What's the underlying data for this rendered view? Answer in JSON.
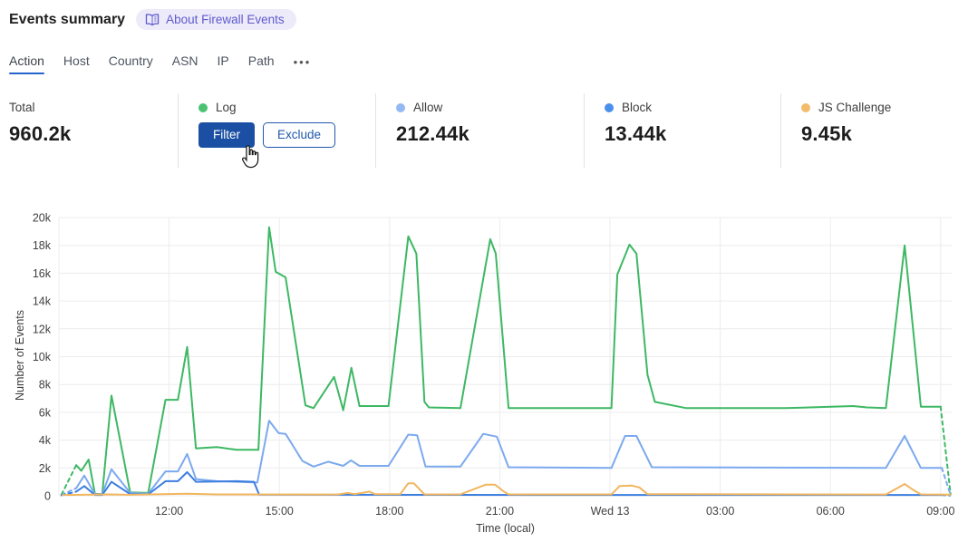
{
  "header": {
    "title": "Events summary",
    "about_badge": "About Firewall Events"
  },
  "tabs": {
    "items": [
      {
        "label": "Action",
        "active": true
      },
      {
        "label": "Host",
        "active": false
      },
      {
        "label": "Country",
        "active": false
      },
      {
        "label": "ASN",
        "active": false
      },
      {
        "label": "IP",
        "active": false
      },
      {
        "label": "Path",
        "active": false
      }
    ],
    "more": "•••"
  },
  "stats": {
    "cards": [
      {
        "label": "Total",
        "value": "960.2k"
      },
      {
        "label": "Log",
        "dot_color": "#4bc272",
        "buttons": [
          {
            "label": "Filter"
          },
          {
            "label": "Exclude"
          }
        ]
      },
      {
        "label": "Allow",
        "dot_color": "#93b8f4",
        "value": "212.44k"
      },
      {
        "label": "Block",
        "dot_color": "#4a90ea",
        "value": "13.44k"
      },
      {
        "label": "JS Challenge",
        "dot_color": "#f3bc6c",
        "value": "9.45k"
      }
    ]
  },
  "icons": {
    "badge": "open-book-icon",
    "tabs_more": "ellipsis-icon",
    "cursor": "hand-pointer-cursor"
  },
  "chart_data": {
    "type": "line",
    "title": "",
    "xlabel": "Time (local)",
    "ylabel": "Number of Events",
    "x_unit": "hours since 09:00 local; tick 15.0 = Wed 13 midnight",
    "y_unit": "events",
    "xlim": [
      0,
      24.3
    ],
    "ylim": [
      0,
      20000
    ],
    "grid": true,
    "grid_color": "#ececec",
    "tick_color": "#404040",
    "legend_position": "top-cards",
    "yticks": [
      {
        "v": 0,
        "label": "0"
      },
      {
        "v": 2000,
        "label": "2k"
      },
      {
        "v": 4000,
        "label": "4k"
      },
      {
        "v": 6000,
        "label": "6k"
      },
      {
        "v": 8000,
        "label": "8k"
      },
      {
        "v": 10000,
        "label": "10k"
      },
      {
        "v": 12000,
        "label": "12k"
      },
      {
        "v": 14000,
        "label": "14k"
      },
      {
        "v": 16000,
        "label": "16k"
      },
      {
        "v": 18000,
        "label": "18k"
      },
      {
        "v": 20000,
        "label": "20k"
      }
    ],
    "xticks": [
      {
        "t": 3,
        "label": "12:00"
      },
      {
        "t": 6,
        "label": "15:00"
      },
      {
        "t": 9,
        "label": "18:00"
      },
      {
        "t": 12,
        "label": "21:00"
      },
      {
        "t": 15,
        "label": "Wed 13"
      },
      {
        "t": 18,
        "label": "03:00"
      },
      {
        "t": 21,
        "label": "06:00"
      },
      {
        "t": 24,
        "label": "09:00"
      }
    ],
    "series": [
      {
        "name": "Log",
        "color": "#3db863",
        "total": "960.2k share (Log)",
        "dashed_prefix": [
          [
            0.07,
            80
          ],
          [
            0.47,
            2200
          ]
        ],
        "points": [
          [
            0.47,
            2200
          ],
          [
            0.61,
            1800
          ],
          [
            0.81,
            2600
          ],
          [
            0.98,
            150
          ],
          [
            1.18,
            120
          ],
          [
            1.43,
            7200
          ],
          [
            1.94,
            250
          ],
          [
            2.43,
            200
          ],
          [
            2.9,
            6900
          ],
          [
            3.24,
            6900
          ],
          [
            3.49,
            10700
          ],
          [
            3.73,
            3400
          ],
          [
            4.3,
            3500
          ],
          [
            4.84,
            3300
          ],
          [
            5.43,
            3300
          ],
          [
            5.72,
            19300
          ],
          [
            5.9,
            16100
          ],
          [
            6.17,
            15700
          ],
          [
            6.71,
            6500
          ],
          [
            6.93,
            6300
          ],
          [
            7.49,
            8550
          ],
          [
            7.74,
            6150
          ],
          [
            7.96,
            9200
          ],
          [
            8.18,
            6450
          ],
          [
            8.97,
            6450
          ],
          [
            9.51,
            18650
          ],
          [
            9.73,
            17400
          ],
          [
            9.95,
            6750
          ],
          [
            10.07,
            6350
          ],
          [
            10.93,
            6300
          ],
          [
            11.74,
            18450
          ],
          [
            11.89,
            17400
          ],
          [
            12.24,
            6300
          ],
          [
            15.04,
            6300
          ],
          [
            15.2,
            15900
          ],
          [
            15.53,
            18050
          ],
          [
            15.72,
            17400
          ],
          [
            16.02,
            8700
          ],
          [
            16.22,
            6750
          ],
          [
            17.08,
            6300
          ],
          [
            19.78,
            6300
          ],
          [
            21.62,
            6450
          ],
          [
            21.99,
            6350
          ],
          [
            22.51,
            6300
          ],
          [
            23.02,
            18000
          ],
          [
            23.46,
            6400
          ],
          [
            24.0,
            6400
          ]
        ],
        "dashed_suffix": [
          [
            24.0,
            6400
          ],
          [
            24.27,
            100
          ]
        ]
      },
      {
        "name": "Allow",
        "color": "#7ca9ef",
        "total": "212.44k",
        "dashed_prefix": [
          [
            0.07,
            60
          ],
          [
            0.47,
            550
          ]
        ],
        "points": [
          [
            0.47,
            550
          ],
          [
            0.69,
            1450
          ],
          [
            0.98,
            120
          ],
          [
            1.18,
            120
          ],
          [
            1.43,
            1900
          ],
          [
            1.94,
            200
          ],
          [
            2.43,
            150
          ],
          [
            2.9,
            1750
          ],
          [
            3.24,
            1750
          ],
          [
            3.49,
            3000
          ],
          [
            3.73,
            1200
          ],
          [
            4.3,
            1050
          ],
          [
            4.84,
            1000
          ],
          [
            5.4,
            950
          ],
          [
            5.72,
            5400
          ],
          [
            5.98,
            4500
          ],
          [
            6.17,
            4450
          ],
          [
            6.63,
            2500
          ],
          [
            6.93,
            2100
          ],
          [
            7.33,
            2450
          ],
          [
            7.74,
            2150
          ],
          [
            7.95,
            2550
          ],
          [
            8.18,
            2150
          ],
          [
            8.97,
            2150
          ],
          [
            9.51,
            4400
          ],
          [
            9.75,
            4350
          ],
          [
            9.98,
            2100
          ],
          [
            10.93,
            2100
          ],
          [
            11.55,
            4450
          ],
          [
            11.92,
            4250
          ],
          [
            12.24,
            2050
          ],
          [
            15.04,
            2000
          ],
          [
            15.41,
            4300
          ],
          [
            15.72,
            4300
          ],
          [
            16.14,
            2050
          ],
          [
            22.51,
            2000
          ],
          [
            23.02,
            4300
          ],
          [
            23.46,
            2000
          ],
          [
            24.03,
            2000
          ]
        ],
        "dashed_suffix": [
          [
            24.03,
            2000
          ],
          [
            24.27,
            50
          ]
        ]
      },
      {
        "name": "Block",
        "color": "#3c7ee0",
        "total": "13.44k",
        "dashed_prefix": [
          [
            0.07,
            40
          ],
          [
            0.47,
            300
          ]
        ],
        "points": [
          [
            0.47,
            300
          ],
          [
            0.69,
            700
          ],
          [
            0.98,
            60
          ],
          [
            1.18,
            60
          ],
          [
            1.43,
            1000
          ],
          [
            1.94,
            120
          ],
          [
            2.43,
            100
          ],
          [
            2.9,
            1050
          ],
          [
            3.24,
            1050
          ],
          [
            3.49,
            1700
          ],
          [
            3.73,
            1000
          ],
          [
            4.84,
            1050
          ],
          [
            5.31,
            1000
          ],
          [
            5.45,
            80
          ],
          [
            13.0,
            60
          ],
          [
            24.03,
            60
          ]
        ],
        "dashed_suffix": [
          [
            24.03,
            60
          ],
          [
            24.25,
            20
          ]
        ]
      },
      {
        "name": "JS Challenge",
        "color": "#f1b65f",
        "total": "9.45k",
        "points": [
          [
            0.1,
            60
          ],
          [
            1.43,
            100
          ],
          [
            1.94,
            70
          ],
          [
            3.49,
            150
          ],
          [
            4.3,
            100
          ],
          [
            7.0,
            90
          ],
          [
            7.6,
            100
          ],
          [
            7.86,
            200
          ],
          [
            8.06,
            120
          ],
          [
            8.45,
            300
          ],
          [
            8.6,
            120
          ],
          [
            9.29,
            120
          ],
          [
            9.51,
            900
          ],
          [
            9.66,
            900
          ],
          [
            9.95,
            100
          ],
          [
            10.93,
            100
          ],
          [
            11.62,
            800
          ],
          [
            11.87,
            800
          ],
          [
            12.11,
            300
          ],
          [
            12.24,
            100
          ],
          [
            15.04,
            100
          ],
          [
            15.26,
            700
          ],
          [
            15.6,
            730
          ],
          [
            15.8,
            600
          ],
          [
            16.02,
            120
          ],
          [
            22.51,
            90
          ],
          [
            23.02,
            850
          ],
          [
            23.27,
            400
          ],
          [
            23.46,
            100
          ],
          [
            24.27,
            80
          ]
        ]
      }
    ]
  }
}
